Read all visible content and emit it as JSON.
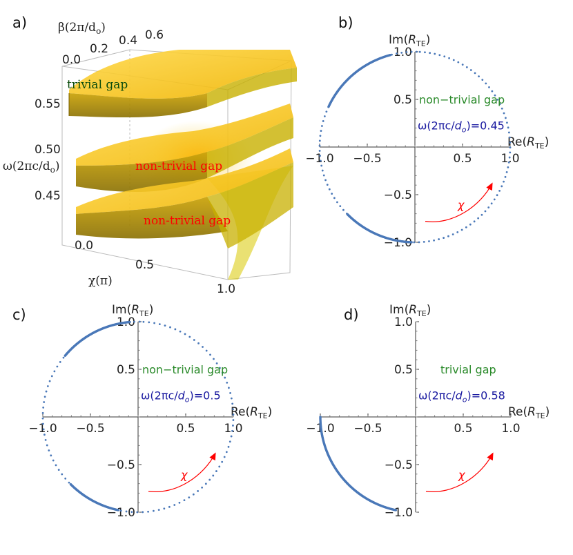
{
  "colors": {
    "points": "#4a78b8",
    "green": "#2a8a2a",
    "blue": "#1a1aa0",
    "red": "#ff0000",
    "band": "#f2c200"
  },
  "panel_a": {
    "label": "a)",
    "beta_label": "β(2π/d",
    "beta_sub": "o",
    "beta_close": ")",
    "omega_label": "ω(2πc/d",
    "omega_sub": "o",
    "omega_close": ")",
    "chi_label": "χ(π)",
    "beta_ticks": [
      "0.0",
      "0.2",
      "0.4",
      "0.6"
    ],
    "omega_ticks": [
      "0.55",
      "0.50",
      "0.45"
    ],
    "chi_ticks": [
      "0.0",
      "0.5",
      "1.0"
    ],
    "text_trivial": "trivial gap",
    "text_nontrivial_1": "non-trivial gap",
    "text_nontrivial_2": "non-trivial gap"
  },
  "chart_data": [
    {
      "id": "b",
      "type": "scatter",
      "label": "b)",
      "x_ticks": [
        "−1.0",
        "−0.5",
        "0.5",
        "1.0"
      ],
      "y_ticks": [
        "1.0",
        "0.5",
        "−0.5",
        "−1.0"
      ],
      "xlabel_main": "Re(",
      "xlabel_var": "R",
      "xlabel_sub": "TE",
      "xlabel_close": ")",
      "ylabel_main": "Im(",
      "ylabel_var": "R",
      "ylabel_sub": "TE",
      "ylabel_close": ")",
      "xlim": [
        -1,
        1
      ],
      "ylim": [
        -1,
        1
      ],
      "gap_text": "non−trivial gap",
      "omega_pre": "ω(2πc/",
      "omega_var": "d",
      "omega_sub": "o",
      "omega_post": ")=0.45",
      "chi_text": "χ",
      "point_angles_deg_start": 89,
      "point_angles_deg_end": 450,
      "point_count": 120,
      "dense_arcs": [
        [
          105,
          155
        ],
        [
          225,
          268
        ]
      ]
    },
    {
      "id": "c",
      "type": "scatter",
      "label": "c)",
      "x_ticks": [
        "−1.0",
        "−0.5",
        "0.5",
        "1.0"
      ],
      "y_ticks": [
        "1.0",
        "0.5",
        "−0.5",
        "−1.0"
      ],
      "xlabel_main": "Re(",
      "xlabel_var": "R",
      "xlabel_sub": "TE",
      "xlabel_close": ")",
      "ylabel_main": "Im(",
      "ylabel_var": "R",
      "ylabel_sub": "TE",
      "ylabel_close": ")",
      "xlim": [
        -1,
        1
      ],
      "ylim": [
        -1,
        1
      ],
      "gap_text": "non−trivial gap",
      "omega_pre": "ω(2πc/",
      "omega_var": "d",
      "omega_sub": "o",
      "omega_post": ")=0.5",
      "chi_text": "χ",
      "point_angles_deg_start": 89,
      "point_angles_deg_end": 450,
      "point_count": 110,
      "dense_arcs": [
        [
          95,
          140
        ],
        [
          225,
          258
        ]
      ]
    },
    {
      "id": "d",
      "type": "scatter",
      "label": "d)",
      "x_ticks": [
        "−1.0",
        "−0.5",
        "0.5",
        "1.0"
      ],
      "y_ticks": [
        "1.0",
        "0.5",
        "−0.5",
        "−1.0"
      ],
      "xlabel_main": "Re(",
      "xlabel_var": "R",
      "xlabel_sub": "TE",
      "xlabel_close": ")",
      "ylabel_main": "Im(",
      "ylabel_var": "R",
      "ylabel_sub": "TE",
      "ylabel_close": ")",
      "xlim": [
        -1,
        1
      ],
      "ylim": [
        -1,
        1
      ],
      "gap_text": "trivial gap",
      "omega_pre": "ω(2πc/",
      "omega_var": "d",
      "omega_sub": "o",
      "omega_post": ")=0.58",
      "chi_text": "χ",
      "point_angles_deg_start": 0,
      "point_angles_deg_end": 0,
      "point_count": 0,
      "dense_arcs": [
        [
          180,
          258
        ]
      ]
    }
  ]
}
